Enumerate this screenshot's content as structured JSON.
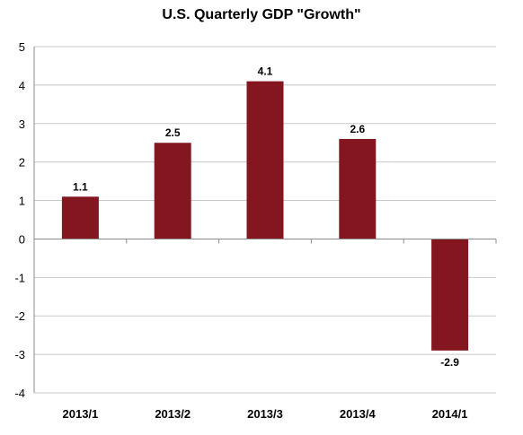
{
  "chart_data": {
    "type": "bar",
    "title": "U.S. Quarterly GDP \"Growth\"",
    "categories": [
      "2013/1",
      "2013/2",
      "2013/3",
      "2013/4",
      "2014/1"
    ],
    "values": [
      1.1,
      2.5,
      4.1,
      2.6,
      -2.9
    ],
    "data_labels": [
      "1.1",
      "2.5",
      "4.1",
      "2.6",
      "-2.9"
    ],
    "ylim": [
      -4,
      5
    ],
    "yticks": [
      5,
      4,
      3,
      2,
      1,
      0,
      -1,
      -2,
      -3,
      -4
    ],
    "xlabel": "",
    "ylabel": "",
    "grid": true,
    "legend": "none",
    "bar_color": "#841620",
    "grid_color": "#c8c8c8"
  }
}
